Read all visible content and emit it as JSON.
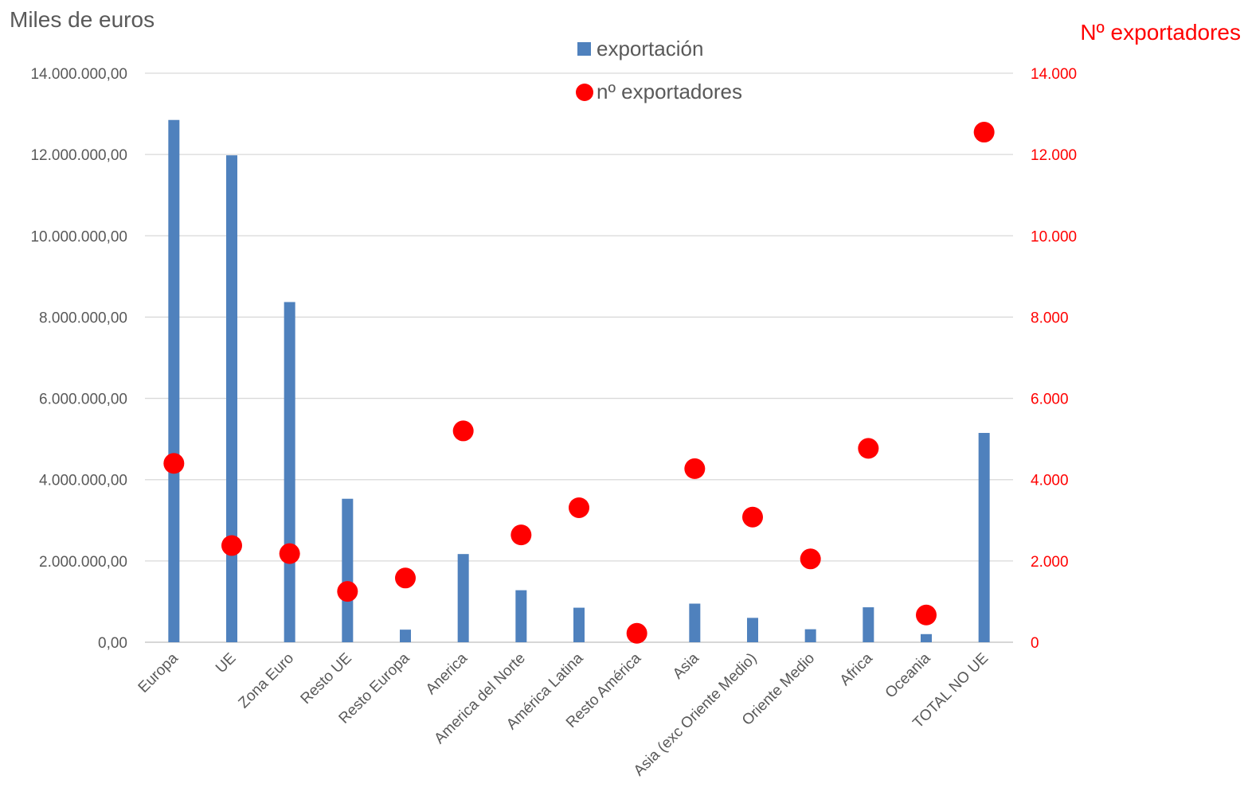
{
  "chart_data": {
    "type": "bar",
    "ylabel_left": "Miles de euros",
    "ylabel_right": "Nº exportadores",
    "categories": [
      "Europa",
      "UE",
      "Zona Euro",
      "Resto UE",
      "Resto Europa",
      "Anerica",
      "America del Norte",
      "América Latina",
      "Resto América",
      "Asia",
      "Asia (exc Oriente Medio)",
      "Oriente Medio",
      "Africa",
      "Oceania",
      "TOTAL NO UE"
    ],
    "y_left_ticks": [
      "0,00",
      "2.000.000,00",
      "4.000.000,00",
      "6.000.000,00",
      "8.000.000,00",
      "10.000.000,00",
      "12.000.000,00",
      "14.000.000,00"
    ],
    "y_right_ticks": [
      "0",
      "2.000",
      "4.000",
      "6.000",
      "8.000",
      "10.000",
      "12.000",
      "14.000"
    ],
    "ylim_left": [
      0,
      14000000
    ],
    "ylim_right": [
      0,
      14000
    ],
    "grid": true,
    "legend_position": "top-center",
    "series": [
      {
        "name": "exportación",
        "type": "bar",
        "axis": "left",
        "color": "#4f81bd",
        "values": [
          12850000,
          11980000,
          8370000,
          3530000,
          310000,
          2170000,
          1280000,
          850000,
          0,
          950000,
          600000,
          320000,
          860000,
          200000,
          5150000
        ]
      },
      {
        "name": "nº exportadores",
        "type": "scatter",
        "axis": "right",
        "color": "#ff0000",
        "values": [
          4400,
          2380,
          2180,
          1250,
          1580,
          5200,
          2640,
          3310,
          220,
          4270,
          3080,
          2050,
          4770,
          670,
          12550
        ]
      }
    ]
  }
}
